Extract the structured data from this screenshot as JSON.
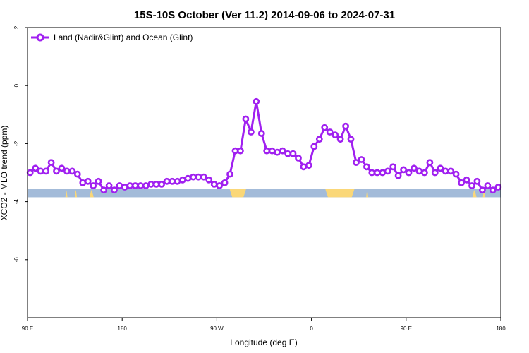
{
  "chart_data": {
    "type": "line",
    "title": "15S-10S October (Ver 11.2)   2014-09-06 to 2024-07-31",
    "xlabel": "Longitude (deg E)",
    "ylabel": "XCO2 - MLO trend (ppm)",
    "x_ticks": [
      {
        "value": 90,
        "label": "90 E"
      },
      {
        "value": 180,
        "label": "180"
      },
      {
        "value": 270,
        "label": "90 W"
      },
      {
        "value": 360,
        "label": "0"
      },
      {
        "value": 450,
        "label": "90 E"
      },
      {
        "value": 540,
        "label": "180"
      }
    ],
    "y_ticks": [
      {
        "value": 2,
        "label": "2"
      },
      {
        "value": 0,
        "label": "0"
      },
      {
        "value": -2,
        "label": "-2"
      },
      {
        "value": -4,
        "label": "-4"
      },
      {
        "value": -6,
        "label": "-6"
      }
    ],
    "xlim": [
      90,
      540
    ],
    "ylim": [
      -8,
      2
    ],
    "grid": false,
    "legend_position": "top-left",
    "series": [
      {
        "name": "Land (Nadir&Glint) and Ocean (Glint)",
        "color": "#a020f0",
        "x": [
          92.5,
          97.5,
          102.5,
          107.5,
          112.5,
          117.5,
          122.5,
          127.5,
          132.5,
          137.5,
          142.5,
          147.5,
          152.5,
          157.5,
          162.5,
          167.5,
          172.5,
          177.5,
          182.5,
          187.5,
          192.5,
          197.5,
          202.5,
          207.5,
          212.5,
          217.5,
          222.5,
          227.5,
          232.5,
          237.5,
          242.5,
          247.5,
          252.5,
          257.5,
          262.5,
          267.5,
          272.5,
          277.5,
          282.5,
          287.5,
          292.5,
          297.5,
          302.5,
          307.5,
          312.5,
          317.5,
          322.5,
          327.5,
          332.5,
          337.5,
          342.5,
          347.5,
          352.5,
          357.5,
          362.5,
          367.5,
          372.5,
          377.5,
          382.5,
          387.5,
          392.5,
          397.5,
          402.5,
          407.5,
          412.5,
          417.5,
          422.5,
          427.5,
          432.5,
          437.5,
          442.5,
          447.5,
          452.5,
          457.5,
          462.5,
          467.5,
          472.5,
          477.5,
          482.5,
          487.5,
          492.5,
          497.5,
          502.5,
          507.5,
          512.5,
          517.5,
          522.5,
          527.5,
          532.5,
          537.5
        ],
        "y": [
          -3.0,
          -2.85,
          -2.95,
          -2.95,
          -2.65,
          -2.95,
          -2.85,
          -2.95,
          -2.95,
          -3.05,
          -3.35,
          -3.3,
          -3.45,
          -3.3,
          -3.6,
          -3.45,
          -3.6,
          -3.45,
          -3.5,
          -3.45,
          -3.45,
          -3.45,
          -3.45,
          -3.4,
          -3.4,
          -3.4,
          -3.3,
          -3.3,
          -3.3,
          -3.25,
          -3.2,
          -3.15,
          -3.15,
          -3.15,
          -3.25,
          -3.4,
          -3.45,
          -3.35,
          -3.05,
          -2.25,
          -2.25,
          -1.15,
          -1.6,
          -0.55,
          -1.65,
          -2.25,
          -2.25,
          -2.3,
          -2.25,
          -2.35,
          -2.35,
          -2.5,
          -2.8,
          -2.75,
          -2.1,
          -1.85,
          -1.45,
          -1.6,
          -1.7,
          -1.85,
          -1.4,
          -1.85,
          -2.65,
          -2.55,
          -2.8,
          -3.0,
          -3.0,
          -3.0,
          -2.95,
          -2.8,
          -3.1,
          -2.9,
          -3.0,
          -2.85,
          -2.95,
          -3.0,
          -2.65,
          -3.0,
          -2.85,
          -2.95,
          -2.95,
          -3.05,
          -3.35,
          -3.25,
          -3.45,
          -3.3,
          -3.6,
          -3.45,
          -3.6,
          -3.5
        ]
      }
    ],
    "background_band": {
      "y_range": [
        -3.85,
        -3.55
      ],
      "ocean_color": "#a3bbd9",
      "land_color": "#fad778",
      "land_segments": [
        [
          126,
          128
        ],
        [
          135,
          137
        ],
        [
          149,
          153
        ],
        [
          282,
          298
        ],
        [
          373,
          401
        ],
        [
          412,
          414
        ],
        [
          513,
          517
        ],
        [
          523,
          525
        ]
      ]
    }
  }
}
